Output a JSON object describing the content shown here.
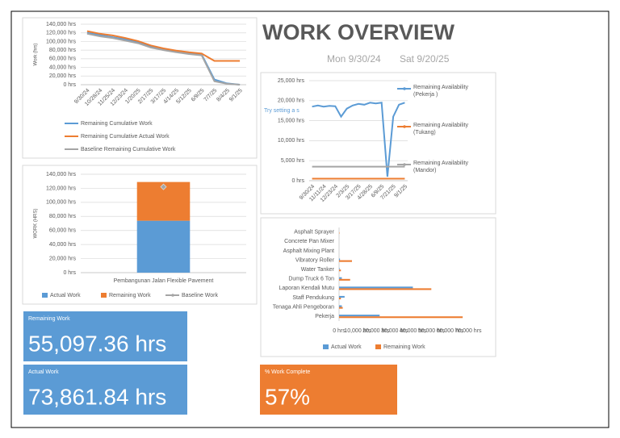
{
  "title": "WORK OVERVIEW",
  "date_start": "Mon 9/30/24",
  "date_end": "Sat 9/20/25",
  "chart_data": [
    {
      "type": "line",
      "y_label": "Work (hrs)",
      "legend": "bottom",
      "categories": [
        "9/30/24",
        "10/28/24",
        "11/25/24",
        "12/23/24",
        "1/20/25",
        "2/17/25",
        "3/17/25",
        "4/14/25",
        "5/12/25",
        "6/9/25",
        "7/7/25",
        "8/4/25",
        "9/1/25"
      ],
      "series": [
        {
          "name": "Remaining Cumulative Work",
          "color": "#5b9bd5",
          "values": [
            120000,
            115000,
            110000,
            105000,
            98000,
            88000,
            82000,
            76000,
            73000,
            70000,
            12000,
            3000,
            0
          ]
        },
        {
          "name": "Remaining Cumulative Actual Work",
          "color": "#ed7d31",
          "values": [
            124000,
            118000,
            114000,
            108000,
            101000,
            91000,
            84000,
            79000,
            75000,
            72000,
            55000,
            55000,
            55000
          ]
        },
        {
          "name": "Baseline Remaining Cumulative Work",
          "color": "#a5a5a5",
          "values": [
            118000,
            112000,
            108000,
            102000,
            96000,
            86000,
            80000,
            75000,
            71000,
            68000,
            8000,
            2000,
            0
          ]
        }
      ],
      "ylim": [
        0,
        140000
      ],
      "yticks": [
        {
          "value": 0,
          "label": "0 hrs"
        },
        {
          "value": 20000,
          "label": "20,000 hrs"
        },
        {
          "value": 40000,
          "label": "40,000 hrs"
        },
        {
          "value": 60000,
          "label": "60,000 hrs"
        },
        {
          "value": 80000,
          "label": "80,000 hrs"
        },
        {
          "value": 100000,
          "label": "100,000 hrs"
        },
        {
          "value": 120000,
          "label": "120,000 hrs"
        },
        {
          "value": 140000,
          "label": "140,000 hrs"
        }
      ],
      "grid": true
    },
    {
      "type": "bar",
      "stacked": true,
      "y_label": "WORK (HRS)",
      "legend": "bottom",
      "categories": [
        "Pembangunan Jalan Flexible Pavement"
      ],
      "series": [
        {
          "name": "Actual Work",
          "color": "#5b9bd5",
          "values": [
            73861.84
          ]
        },
        {
          "name": "Remaining Work",
          "color": "#ed7d31",
          "values": [
            55097.36
          ]
        },
        {
          "name": "Baseline Work",
          "color": "#a5a5a5",
          "type": "line",
          "values": [
            122000
          ]
        }
      ],
      "ylim": [
        0,
        140000
      ],
      "yticks": [
        {
          "value": 0,
          "label": "0 hrs"
        },
        {
          "value": 20000,
          "label": "20,000 hrs"
        },
        {
          "value": 40000,
          "label": "40,000 hrs"
        },
        {
          "value": 60000,
          "label": "60,000 hrs"
        },
        {
          "value": 80000,
          "label": "80,000 hrs"
        },
        {
          "value": 100000,
          "label": "100,000 hrs"
        },
        {
          "value": 120000,
          "label": "120,000 hrs"
        },
        {
          "value": 140000,
          "label": "140,000 hrs"
        }
      ],
      "grid": true
    },
    {
      "type": "line",
      "legend": "right",
      "annotation": "Try setting a s",
      "categories": [
        "9/30/24",
        null,
        "11/11/24",
        null,
        "12/23/24",
        null,
        "2/3/25",
        null,
        "3/17/25",
        null,
        "4/28/25",
        null,
        "6/9/25",
        null,
        "7/21/25",
        null,
        "9/1/25"
      ],
      "series": [
        {
          "name": "Remaining Availability (Pekerja )",
          "color": "#5b9bd5",
          "values": [
            18500,
            18800,
            18500,
            18700,
            18600,
            16000,
            18000,
            18800,
            19200,
            19000,
            19500,
            19300,
            19500,
            1000,
            16000,
            19000,
            19500
          ]
        },
        {
          "name": "Remaining Availability (Tukang)",
          "color": "#ed7d31",
          "values": [
            500,
            500,
            500,
            500,
            500,
            500,
            500,
            500,
            500,
            500,
            500,
            500,
            500,
            500,
            500,
            500,
            500
          ]
        },
        {
          "name": "Remaining Availability (Mandor)",
          "color": "#a5a5a5",
          "values": [
            3500,
            3500,
            3500,
            3500,
            3500,
            3500,
            3500,
            3500,
            3500,
            3500,
            3500,
            3500,
            3500,
            3500,
            3500,
            3500,
            3500
          ]
        }
      ],
      "ylim": [
        0,
        25000
      ],
      "yticks": [
        {
          "value": 0,
          "label": "0 hrs"
        },
        {
          "value": 5000,
          "label": "5,000 hrs"
        },
        {
          "value": 10000,
          "label": "10,000 hrs"
        },
        {
          "value": 15000,
          "label": "15,000 hrs"
        },
        {
          "value": 20000,
          "label": "20,000 hrs"
        },
        {
          "value": 25000,
          "label": "25,000 hrs"
        }
      ],
      "grid": true
    },
    {
      "type": "bar",
      "orientation": "horizontal",
      "legend": "bottom",
      "categories": [
        "Asphalt Sprayer",
        "Concrete Pan Mixer",
        "Asphalt Mixing Plant",
        "Vibratory Roller",
        "Water Tanker",
        "Dump Truck 6 Ton",
        "Laporan Kendali Mutu",
        "Staff Pendukung",
        "Tenaga Ahli Pengeboran",
        "Pekerja"
      ],
      "series": [
        {
          "name": "Actual Work",
          "color": "#5b9bd5",
          "values": [
            0,
            0,
            0,
            500,
            300,
            1500,
            40000,
            3000,
            1500,
            22000
          ]
        },
        {
          "name": "Remaining Work",
          "color": "#ed7d31",
          "values": [
            200,
            0,
            0,
            7000,
            1000,
            6000,
            50000,
            1000,
            2000,
            67000
          ]
        }
      ],
      "xlim": [
        0,
        70000
      ],
      "xticks": [
        {
          "value": 0,
          "label": "0 hrs"
        },
        {
          "value": 10000,
          "label": "10,000 hrs"
        },
        {
          "value": 20000,
          "label": "20,000 hrs"
        },
        {
          "value": 30000,
          "label": "30,000 hrs"
        },
        {
          "value": 40000,
          "label": "40,000 hrs"
        },
        {
          "value": 50000,
          "label": "50,000 hrs"
        },
        {
          "value": 60000,
          "label": "60,000 hrs"
        },
        {
          "value": 70000,
          "label": "70,000 hrs"
        }
      ],
      "grid": false
    }
  ],
  "kpis": [
    {
      "label": "Remaining Work",
      "value": "55,097.36 hrs",
      "color": "#5b9bd5"
    },
    {
      "label": "Actual Work",
      "value": "73,861.84 hrs",
      "color": "#5b9bd5"
    },
    {
      "label": "% Work Complete",
      "value": "57%",
      "color": "#ed7d31"
    }
  ]
}
